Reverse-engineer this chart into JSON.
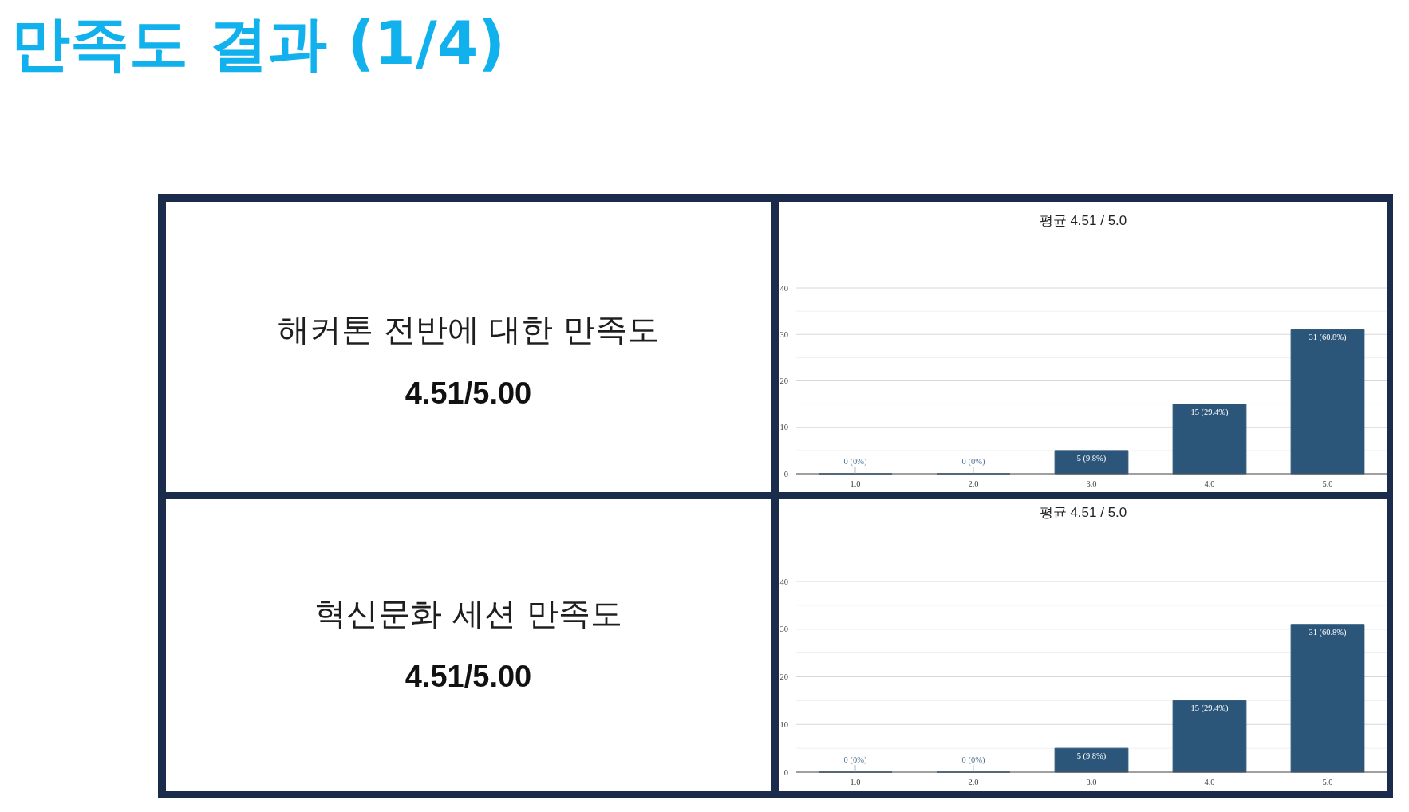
{
  "chart_data": [
    {
      "type": "other",
      "title": "만족도 결과 (1/4)"
    },
    {
      "type": "other",
      "title": "해커톤 전반에 대한 만족도",
      "annotations": [
        "4.51/5.00"
      ]
    },
    {
      "type": "bar",
      "title": "평균 4.51 / 5.0",
      "categories": [
        "1.0",
        "2.0",
        "3.0",
        "4.0",
        "5.0"
      ],
      "values": [
        0,
        0,
        5,
        15,
        31
      ],
      "color": "#2b5579",
      "value_labels": [
        "0 (0%)",
        "0 (0%)",
        "5 (9.8%)",
        "15 (29.4%)",
        "31 (60.8%)"
      ],
      "ylim": [
        0,
        40
      ],
      "yticks": [
        0,
        {
          "value": 5,
          "label": null
        },
        10,
        {
          "value": 15,
          "label": null
        },
        20,
        {
          "value": 25,
          "label": null
        },
        30,
        {
          "value": 35,
          "label": null
        },
        40
      ],
      "grid": "y"
    },
    {
      "type": "other",
      "title": "혁신문화 세션 만족도",
      "annotations": [
        "4.51/5.00"
      ]
    },
    {
      "type": "bar",
      "title": "평균 4.51 / 5.0",
      "categories": [
        "1.0",
        "2.0",
        "3.0",
        "4.0",
        "5.0"
      ],
      "values": [
        0,
        0,
        5,
        15,
        31
      ],
      "color": "#2b5579",
      "value_labels": [
        "0 (0%)",
        "0 (0%)",
        "5 (9.8%)",
        "15 (29.4%)",
        "31 (60.8%)"
      ],
      "ylim": [
        0,
        40
      ],
      "yticks": [
        0,
        {
          "value": 5,
          "label": null
        },
        10,
        {
          "value": 15,
          "label": null
        },
        20,
        {
          "value": 25,
          "label": null
        },
        30,
        {
          "value": 35,
          "label": null
        },
        40
      ],
      "grid": "y"
    }
  ]
}
